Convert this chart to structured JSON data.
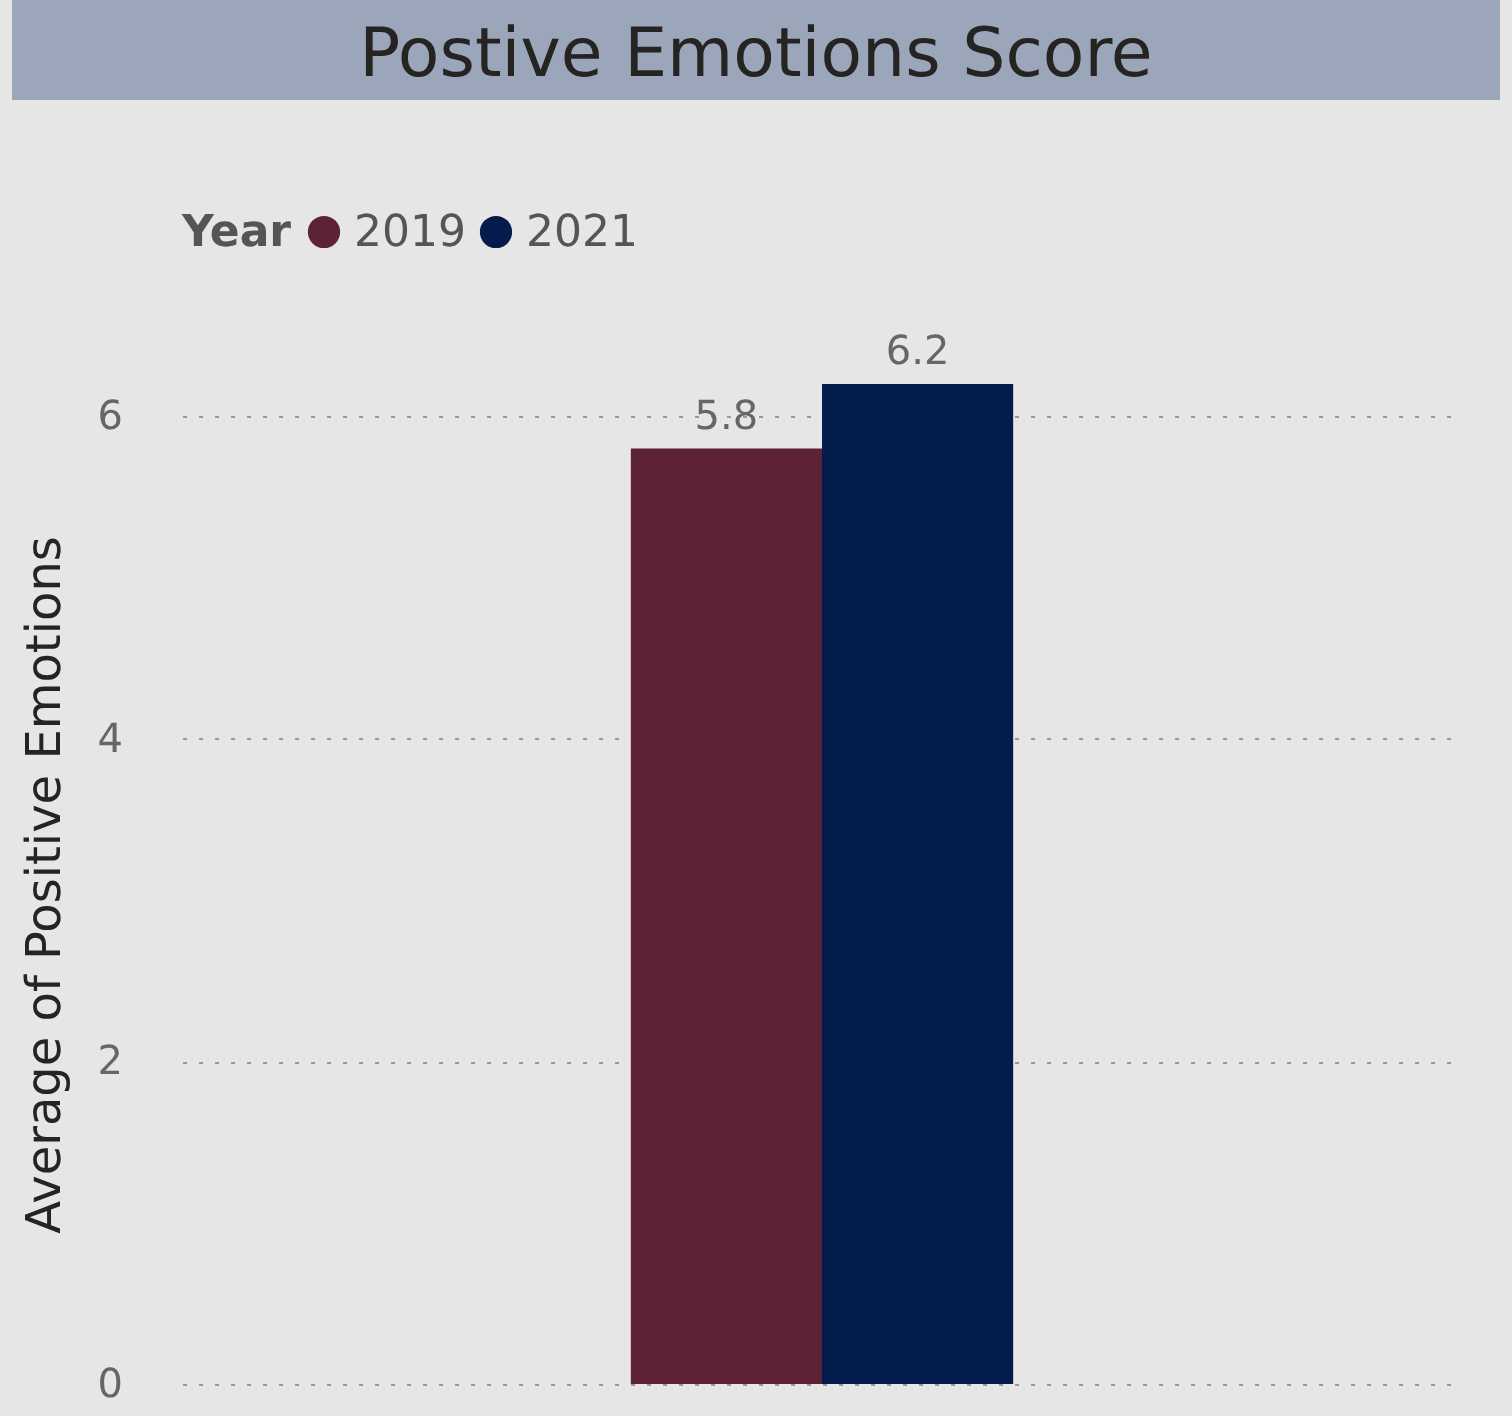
{
  "chart_data": {
    "type": "bar",
    "title": "Postive Emotions Score",
    "ylabel": "Average of Positive Emotions",
    "legend_title": "Year",
    "legend": "top left",
    "categories": [
      null
    ],
    "series": [
      {
        "name": "2019",
        "color": "#5e2236",
        "values": [
          5.8
        ]
      },
      {
        "name": "2021",
        "color": "#031c4b",
        "values": [
          6.2
        ]
      }
    ],
    "ylim": [
      0,
      6.2
    ],
    "yticks": [
      0,
      2,
      4,
      6
    ],
    "grid": "y",
    "data_labels": true
  }
}
